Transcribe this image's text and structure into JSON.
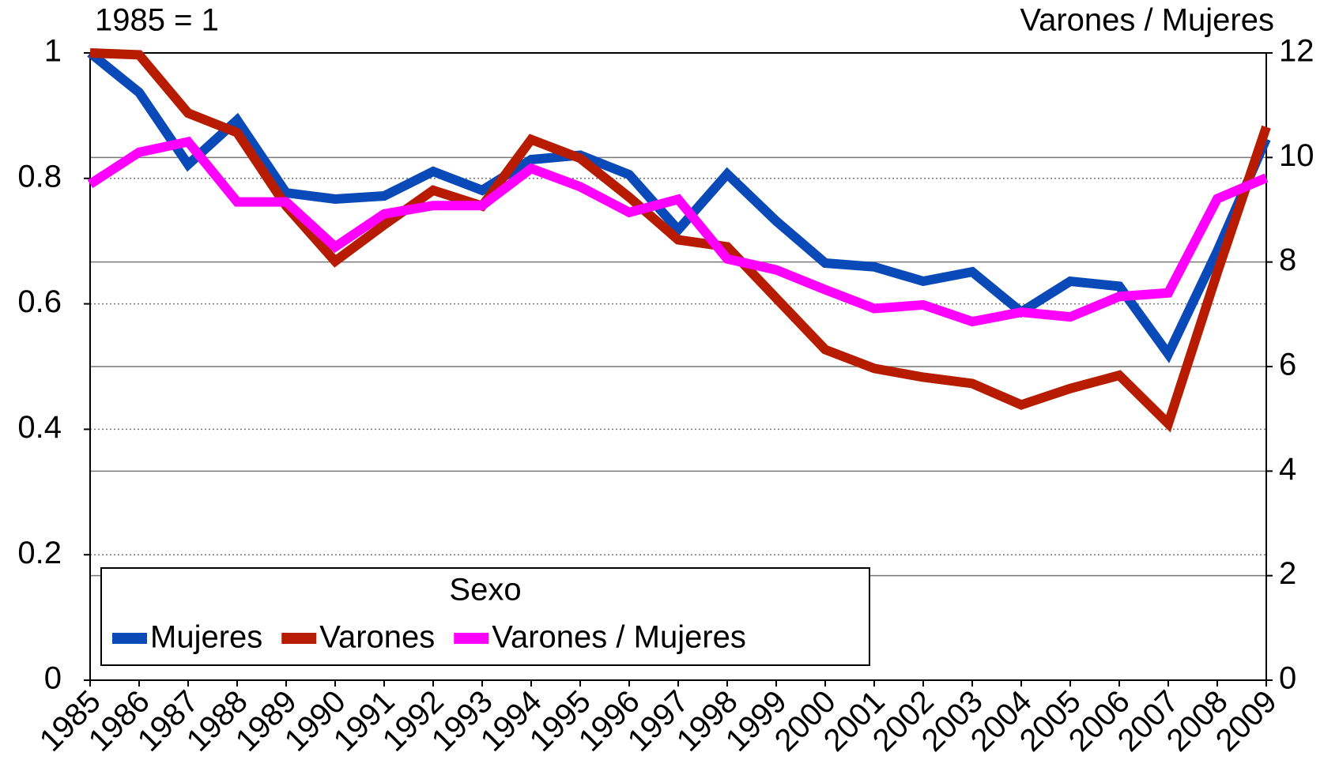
{
  "chart_data": {
    "type": "line",
    "ylabel": "1985 = 1",
    "y2label": "Varones / Mujeres",
    "categories": [
      "1985",
      "1986",
      "1987",
      "1988",
      "1989",
      "1990",
      "1991",
      "1992",
      "1993",
      "1994",
      "1995",
      "1996",
      "1997",
      "1998",
      "1999",
      "2000",
      "2001",
      "2002",
      "2003",
      "2004",
      "2005",
      "2006",
      "2007",
      "2008",
      "2009"
    ],
    "series": [
      {
        "name": "Mujeres",
        "color": "#0a4ab8",
        "values": [
          1.0,
          0.937,
          0.822,
          0.893,
          0.777,
          0.767,
          0.772,
          0.811,
          0.781,
          0.83,
          0.837,
          0.806,
          0.718,
          0.807,
          0.732,
          0.665,
          0.659,
          0.636,
          0.651,
          0.587,
          0.636,
          0.628,
          0.52,
          0.684,
          0.863
        ]
      },
      {
        "name": "Varones",
        "color": "#b81c00",
        "values": [
          1.0,
          0.997,
          0.904,
          0.873,
          0.756,
          0.668,
          0.726,
          0.781,
          0.756,
          0.862,
          0.832,
          0.77,
          0.702,
          0.691,
          0.609,
          0.527,
          0.497,
          0.483,
          0.473,
          0.439,
          0.465,
          0.486,
          0.409,
          0.65,
          0.882
        ]
      },
      {
        "name": "Varones / Mujeres",
        "color": "#ff00ff",
        "axis": "y2",
        "values": [
          9.49,
          10.1,
          10.3,
          9.15,
          9.15,
          8.29,
          8.92,
          9.08,
          9.08,
          9.79,
          9.44,
          8.95,
          9.2,
          8.06,
          7.85,
          7.47,
          7.11,
          7.18,
          6.86,
          7.04,
          6.95,
          7.34,
          7.41,
          9.21,
          9.61
        ]
      }
    ],
    "ylim": [
      0,
      1
    ],
    "yticks": [
      0,
      0.2,
      0.4,
      0.6,
      0.8,
      1
    ],
    "y2lim": [
      0,
      12
    ],
    "y2ticks": [
      0,
      2,
      4,
      6,
      8,
      10,
      12
    ],
    "grid": true,
    "legend": {
      "title": "Sexo",
      "position": "lower left"
    }
  }
}
